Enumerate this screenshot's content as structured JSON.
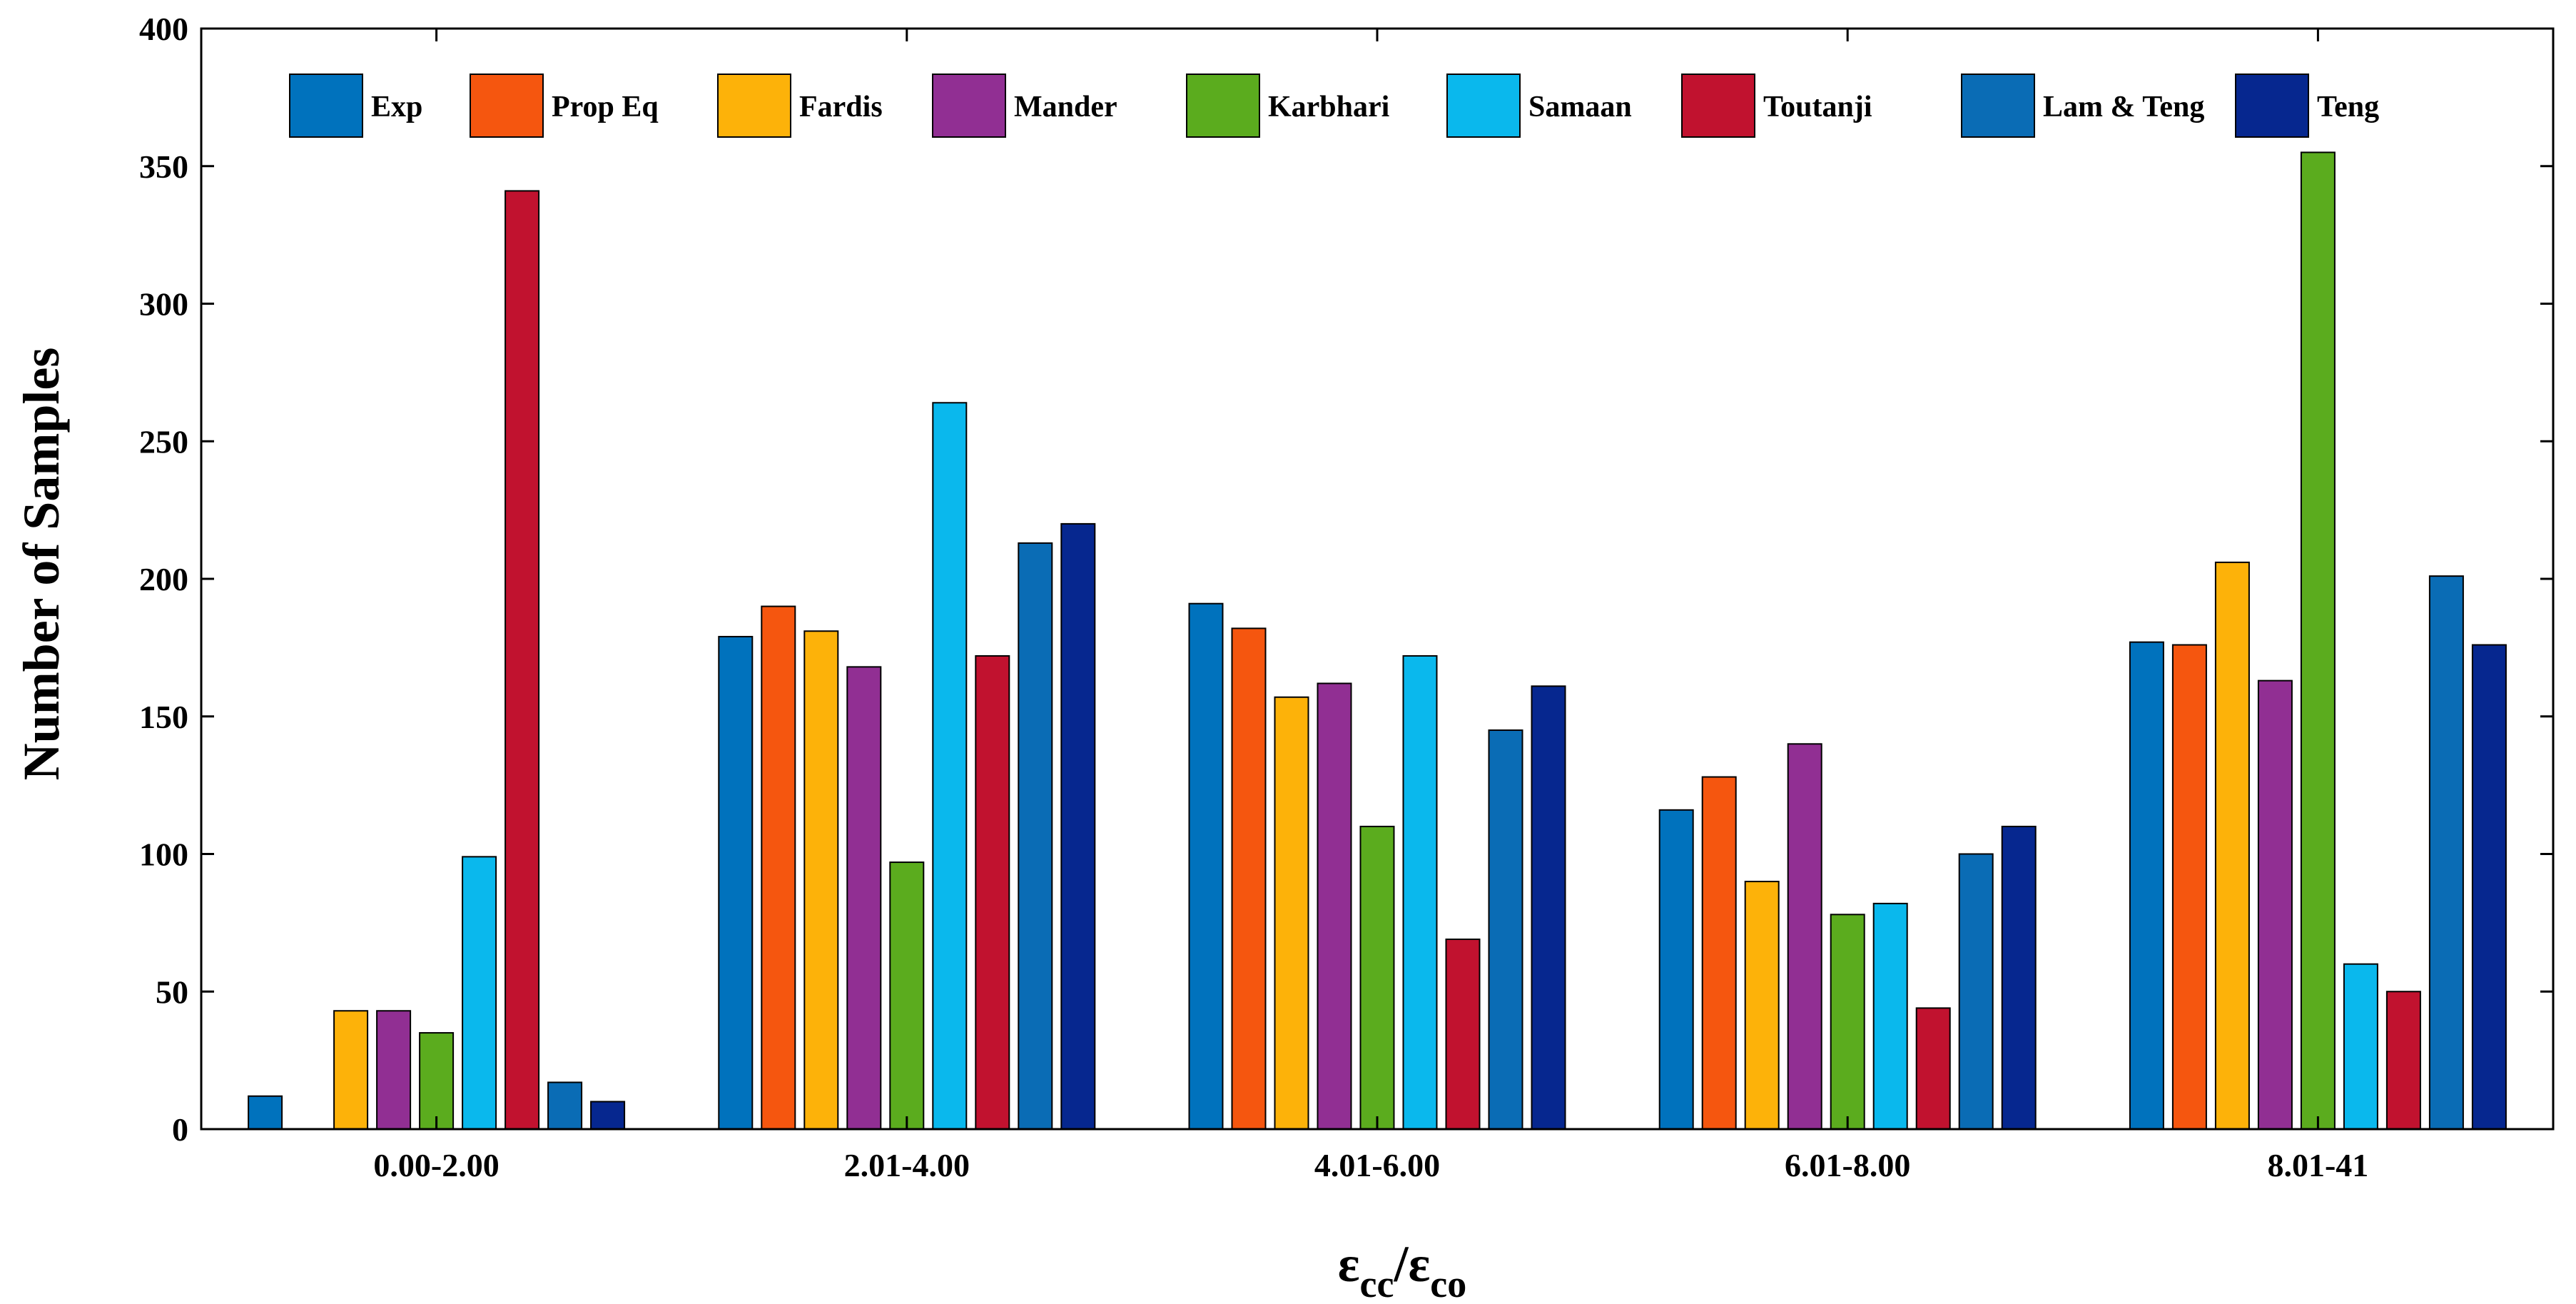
{
  "chart_data": {
    "type": "bar",
    "title": "",
    "xlabel": "εcc/εco",
    "xlabel_main": "ε",
    "xlabel_sub1": "cc",
    "xlabel_slash": "/",
    "xlabel_main2": "ε",
    "xlabel_sub2": "co",
    "ylabel": "Number of Samples",
    "ylim": [
      0,
      400
    ],
    "yticks": [
      0,
      50,
      100,
      150,
      200,
      250,
      300,
      350,
      400
    ],
    "grid": false,
    "legend_position": "top",
    "categories": [
      "0.00-2.00",
      "2.01-4.00",
      "4.01-6.00",
      "6.01-8.00",
      "8.01-41"
    ],
    "series": [
      {
        "name": "Exp",
        "color": "#0072bd",
        "values": [
          12,
          179,
          191,
          116,
          177
        ]
      },
      {
        "name": "Prop Eq",
        "color": "#f5560f",
        "values": [
          0,
          190,
          182,
          128,
          176
        ]
      },
      {
        "name": "Fardis",
        "color": "#fdb209",
        "values": [
          43,
          181,
          157,
          90,
          206
        ]
      },
      {
        "name": "Mander",
        "color": "#912f93",
        "values": [
          43,
          168,
          162,
          140,
          163
        ]
      },
      {
        "name": "Karbhari",
        "color": "#5bac1e",
        "values": [
          35,
          97,
          110,
          78,
          355
        ]
      },
      {
        "name": "Samaan",
        "color": "#0ab8ed",
        "values": [
          99,
          264,
          172,
          82,
          60
        ]
      },
      {
        "name": "Toutanji",
        "color": "#c1122f",
        "values": [
          341,
          172,
          69,
          44,
          50
        ]
      },
      {
        "name": "Lam & Teng",
        "color": "#0a6cb5",
        "values": [
          17,
          213,
          145,
          100,
          201
        ]
      },
      {
        "name": "Teng",
        "color": "#06278f",
        "values": [
          10,
          220,
          161,
          110,
          176
        ]
      }
    ]
  }
}
